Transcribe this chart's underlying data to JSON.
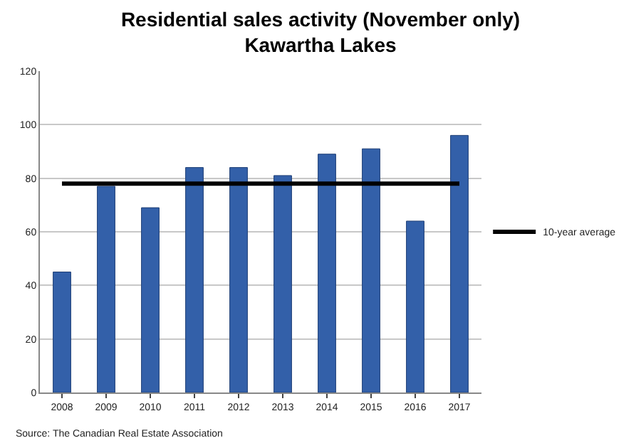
{
  "chart_data": {
    "type": "bar",
    "title": "Residential sales activity (November only)",
    "subtitle": "Kawartha Lakes",
    "categories": [
      "2008",
      "2009",
      "2010",
      "2011",
      "2012",
      "2013",
      "2014",
      "2015",
      "2016",
      "2017"
    ],
    "series": [
      {
        "color": "#3360a9",
        "values": [
          45,
          77,
          69,
          84,
          84,
          81,
          89,
          91,
          64,
          96
        ]
      },
      {
        "name": "10-year average",
        "type": "line",
        "color": "#000000",
        "values": [
          78,
          78,
          78,
          78,
          78,
          78,
          78,
          78,
          78,
          78
        ]
      }
    ],
    "ylim": [
      0,
      120
    ],
    "yticks": [
      0,
      20,
      40,
      60,
      80,
      100,
      120
    ],
    "grid": "y",
    "legend": "right",
    "marker": "none",
    "annotations": [
      "Source: The Canadian Real Estate Association"
    ]
  }
}
